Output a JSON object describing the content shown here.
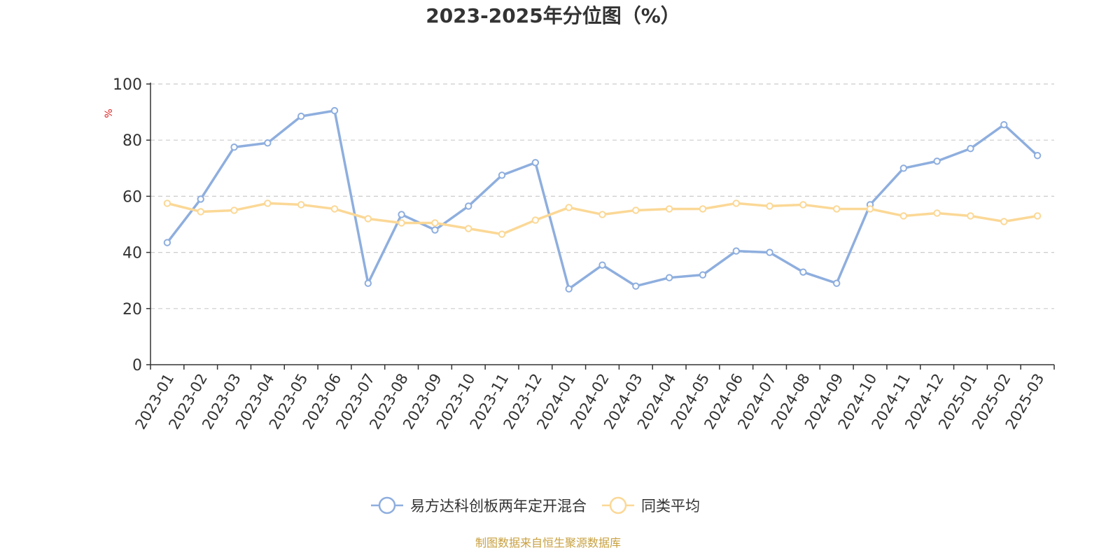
{
  "chart_data": {
    "type": "line",
    "title": "2023-2025年分位图（%）",
    "ylabel": "%",
    "ylim": [
      0,
      100
    ],
    "yticks": [
      "0",
      "20",
      "40",
      "60",
      "80",
      "100"
    ],
    "grid": true,
    "legend_position": "bottom",
    "categories": [
      "2023-01",
      "2023-02",
      "2023-03",
      "2023-04",
      "2023-05",
      "2023-06",
      "2023-07",
      "2023-08",
      "2023-09",
      "2023-10",
      "2023-11",
      "2023-12",
      "2024-01",
      "2024-02",
      "2024-03",
      "2024-04",
      "2024-05",
      "2024-06",
      "2024-07",
      "2024-08",
      "2024-09",
      "2024-10",
      "2024-11",
      "2024-12",
      "2025-01",
      "2025-02",
      "2025-03"
    ],
    "series": [
      {
        "name": "易方达科创板两年定开混合",
        "color": "#8eaede",
        "values": [
          43.5,
          59.0,
          77.5,
          79.0,
          88.5,
          90.5,
          29.0,
          53.5,
          48.0,
          56.5,
          67.5,
          72.0,
          27.0,
          35.5,
          28.0,
          31.0,
          32.0,
          40.5,
          40.0,
          33.0,
          29.0,
          57.0,
          70.0,
          72.5,
          77.0,
          85.5,
          74.5
        ]
      },
      {
        "name": "同类平均",
        "color": "#fbd896",
        "values": [
          57.5,
          54.5,
          55.0,
          57.5,
          57.0,
          55.5,
          52.0,
          50.5,
          50.5,
          48.5,
          46.5,
          51.5,
          56.0,
          53.5,
          55.0,
          55.5,
          55.5,
          57.5,
          56.5,
          57.0,
          55.5,
          55.5,
          53.0,
          54.0,
          53.0,
          51.0,
          53.0
        ]
      }
    ]
  },
  "source_note": "制图数据来自恒生聚源数据库",
  "colors": {
    "unit_label": "#e02020",
    "source_note": "#c8a040",
    "grid": "#cccccc",
    "axis": "#333333"
  }
}
